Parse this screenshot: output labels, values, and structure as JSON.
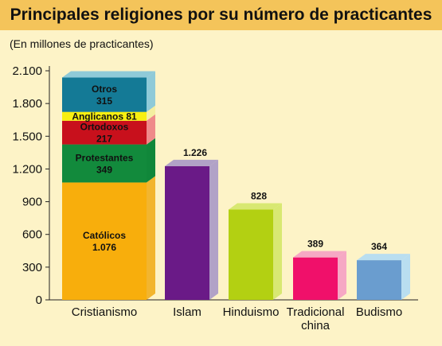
{
  "chart_data": {
    "type": "bar",
    "title": "Principales religiones por su número de practicantes",
    "ylabel": "(En millones de practicantes)",
    "ylim": [
      0,
      2100
    ],
    "yticks": [
      {
        "value": 0,
        "label": "0"
      },
      {
        "value": 300,
        "label": "300"
      },
      {
        "value": 600,
        "label": "600"
      },
      {
        "value": 900,
        "label": "900"
      },
      {
        "value": 1200,
        "label": "1.200"
      },
      {
        "value": 1500,
        "label": "1.500"
      },
      {
        "value": 1800,
        "label": "1.800"
      },
      {
        "value": 2100,
        "label": "2.100"
      }
    ],
    "grid": false,
    "categories": [
      {
        "name": "Cristianismo",
        "stack": [
          {
            "name": "Católicos",
            "value": 1076,
            "value_label": "1.076",
            "color": "#f8ae0c",
            "side": "#f2b52e"
          },
          {
            "name": "Protestantes",
            "value": 349,
            "value_label": "349",
            "color": "#128a3c",
            "side": "#10873a"
          },
          {
            "name": "Ortodoxos",
            "value": 217,
            "value_label": "217",
            "color": "#c8101c",
            "side": "#ef8a8a"
          },
          {
            "name": "Anglicanos",
            "value": 81,
            "value_label": "81",
            "color": "#f7ef10",
            "side": "#f4eea0"
          },
          {
            "name": "Otros",
            "value": 315,
            "value_label": "315",
            "color": "#147a96",
            "side": "#8fcad8"
          }
        ]
      },
      {
        "name": "Islam",
        "value": 1226,
        "value_label": "1.226",
        "color": "#6a1a87",
        "side": "#b1a2c7"
      },
      {
        "name": "Hinduismo",
        "value": 828,
        "value_label": "828",
        "color": "#b3d012",
        "side": "#d8e872"
      },
      {
        "name": "Tradicional china",
        "value": 389,
        "value_label": "389",
        "color": "#f0106a",
        "side": "#f6a8c4"
      },
      {
        "name": "Budismo",
        "value": 364,
        "value_label": "364",
        "color": "#6a9dcf",
        "side": "#b9def0"
      }
    ]
  }
}
